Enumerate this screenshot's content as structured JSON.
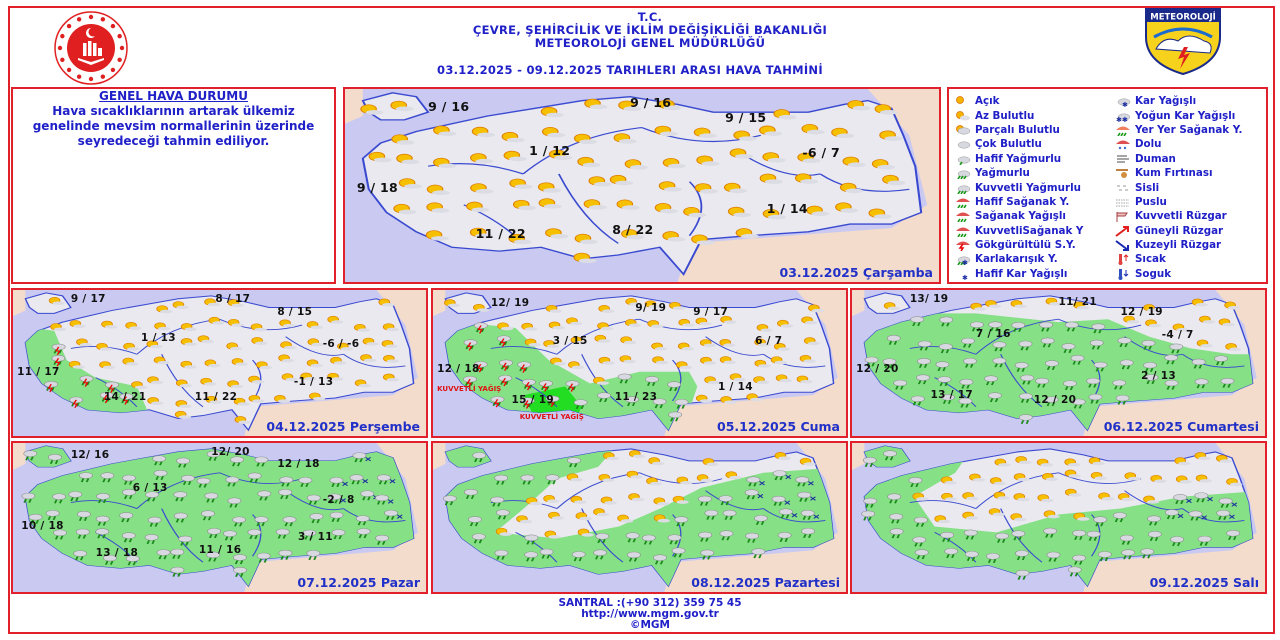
{
  "header": {
    "line1": "T.C.",
    "line2": "ÇEVRE, ŞEHİRCİLİK VE İKLİM DEĞİŞİKLİĞİ BAKANLIĞI",
    "line3": "METEOROLOJİ  GENEL  MÜDÜRLÜĞÜ",
    "range": "03.12.2025  -  09.12.2025   TARIHLERI  ARASI  HAVA  TAHMİNİ",
    "logo_right_text": "METEOROLOJİ"
  },
  "general": {
    "title": "GENEL HAVA DURUMU",
    "text": "Hava sıcaklıklarının artarak ülkemiz genelinde mevsim normallerinin üzerinde seyredeceği tahmin ediliyor."
  },
  "colors": {
    "accent_text": "#2020c8",
    "border": "#e0202a",
    "sea": "#c9c9f2",
    "land": "#e9e9ef",
    "rain_area": "#86e086",
    "heavy_rain_area": "#22dd22",
    "neighbor": "#f3dccb"
  },
  "maps": [
    {
      "day": "03.12.2025 Çarşamba",
      "temps": [
        "9 / 16",
        "9 / 16",
        "9 / 15",
        "1 / 12",
        "-6 / 7",
        "9 / 18",
        "1 / 14",
        "11 / 22",
        "8 / 22"
      ],
      "dominant_icon": "partly-cloudy"
    },
    {
      "day": "04.12.2025 Perşembe",
      "temps": [
        "9 / 17",
        "8 / 17",
        "8 / 15",
        "1 / 13",
        "-6 / -6",
        "11 / 17",
        "-1 / 13",
        "14 / 21",
        "11 / 22"
      ],
      "dominant_icon": "partly-cloudy"
    },
    {
      "day": "05.12.2025 Cuma",
      "temps": [
        "12/ 19",
        "9/ 19",
        "9 / 17",
        "3 / 15",
        "6 / 7",
        "12 / 18",
        "1 / 14",
        "15 / 19",
        "11 / 23"
      ],
      "annotations": [
        "KUVVETLİ YAĞIŞ",
        "KUVVETLİ YAĞIŞ"
      ],
      "dominant_icon": "thunderstorm"
    },
    {
      "day": "06.12.2025 Cumartesi",
      "temps": [
        "13/ 19",
        "11/ 21",
        "12 / 19",
        "7 / 16",
        "-4 / 7",
        "12 / 20",
        "2 / 13",
        "13 / 17",
        "12 / 20"
      ],
      "dominant_icon": "rain"
    },
    {
      "day": "07.12.2025 Pazar",
      "temps": [
        "12/ 16",
        "12/ 20",
        "12 / 18",
        "6 / 13",
        "-2 / 8",
        "10 / 18",
        "3 / 11",
        "13 / 18",
        "11 / 16"
      ],
      "dominant_icon": "rain"
    },
    {
      "day": "08.12.2025 Pazartesi",
      "temps": [],
      "dominant_icon": "rain"
    },
    {
      "day": "09.12.2025 Salı",
      "temps": [],
      "dominant_icon": "rain"
    }
  ],
  "legend": {
    "left": [
      {
        "label": "Açık",
        "icon": "sun-icon"
      },
      {
        "label": "Az Bulutlu",
        "icon": "mostly-sunny-icon"
      },
      {
        "label": "Parçalı Bulutlu",
        "icon": "partly-cloudy-icon"
      },
      {
        "label": "Çok Bulutlu",
        "icon": "cloudy-icon"
      },
      {
        "label": "Hafif Yağmurlu",
        "icon": "light-rain-icon"
      },
      {
        "label": "Yağmurlu",
        "icon": "rain-icon"
      },
      {
        "label": "Kuvvetli Yağmurlu",
        "icon": "heavy-rain-icon"
      },
      {
        "label": "Hafif Sağanak Y.",
        "icon": "light-shower-icon"
      },
      {
        "label": "Sağanak Yağışlı",
        "icon": "shower-icon"
      },
      {
        "label": "KuvvetliSağanak Y",
        "icon": "heavy-shower-icon"
      },
      {
        "label": "Gökgürültülü S.Y.",
        "icon": "thunderstorm-icon"
      },
      {
        "label": "Karlakarışık Y.",
        "icon": "sleet-icon"
      },
      {
        "label": "Hafif Kar Yağışlı",
        "icon": "light-snow-icon"
      }
    ],
    "right": [
      {
        "label": "Kar Yağışlı",
        "icon": "snow-icon"
      },
      {
        "label": "Yoğun Kar Yağışlı",
        "icon": "heavy-snow-icon"
      },
      {
        "label": "Yer Yer Sağanak Y.",
        "icon": "scattered-shower-icon"
      },
      {
        "label": "Dolu",
        "icon": "hail-icon"
      },
      {
        "label": "Duman",
        "icon": "smoke-icon"
      },
      {
        "label": "Kum Fırtınası",
        "icon": "sandstorm-icon"
      },
      {
        "label": "Sisli",
        "icon": "fog-icon"
      },
      {
        "label": "Puslu",
        "icon": "haze-icon"
      },
      {
        "label": "Kuvvetli Rüzgar",
        "icon": "strong-wind-icon"
      },
      {
        "label": "Güneyli Rüzgar",
        "icon": "south-wind-arrow-icon"
      },
      {
        "label": "Kuzeyli Rüzgar",
        "icon": "north-wind-arrow-icon"
      },
      {
        "label": "Sıcak",
        "icon": "hot-thermometer-icon"
      },
      {
        "label": "Soguk",
        "icon": "cold-thermometer-icon"
      }
    ]
  },
  "footer": {
    "phone": "SANTRAL :(+90 312) 359 75 45",
    "url": "http://www.mgm.gov.tr",
    "copyright": "©MGM"
  }
}
